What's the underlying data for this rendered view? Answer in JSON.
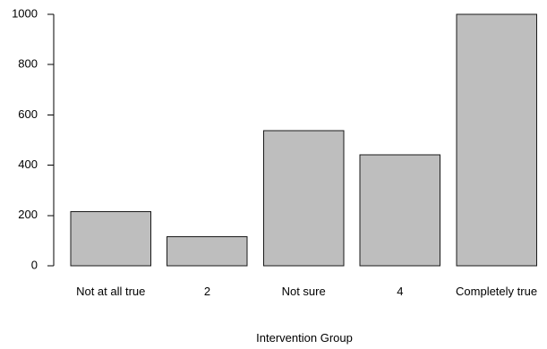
{
  "chart_data": {
    "type": "bar",
    "categories": [
      "Not at all true",
      "2",
      "Not sure",
      "4",
      "Completely true"
    ],
    "values": [
      215,
      115,
      537,
      442,
      1000
    ],
    "title": "",
    "xlabel": "Intervention Group",
    "ylabel": "",
    "ylim": [
      0,
      1000
    ],
    "yticks": [
      0,
      200,
      400,
      600,
      800,
      1000
    ],
    "grid": false,
    "bar_color": "#bebebe",
    "bar_edge_color": "#1a1a1a"
  }
}
